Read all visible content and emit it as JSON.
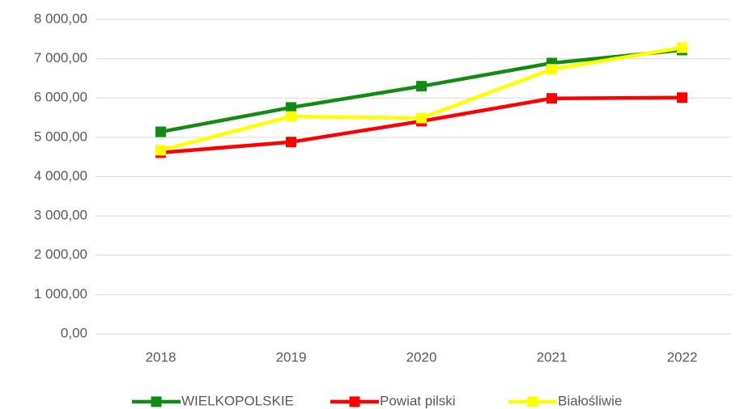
{
  "chart_data": {
    "type": "line",
    "categories": [
      "2018",
      "2019",
      "2020",
      "2021",
      "2022"
    ],
    "series": [
      {
        "name": "WIELKOPOLSKIE",
        "color": "#138a13",
        "values": [
          5140,
          5760,
          6300,
          6890,
          7220
        ]
      },
      {
        "name": "Powiat pilski",
        "color": "#ff0000",
        "values": [
          4610,
          4880,
          5410,
          5990,
          6010
        ]
      },
      {
        "name": "Białośliwie",
        "color": "#ffff00",
        "values": [
          4670,
          5530,
          5490,
          6730,
          7280
        ]
      }
    ],
    "ylim": [
      0,
      8000
    ],
    "yticks": [
      {
        "value": 0,
        "label": "0,00"
      },
      {
        "value": 1000,
        "label": "1 000,00"
      },
      {
        "value": 2000,
        "label": "2 000,00"
      },
      {
        "value": 3000,
        "label": "3 000,00"
      },
      {
        "value": 4000,
        "label": "4 000,00"
      },
      {
        "value": 5000,
        "label": "5 000,00"
      },
      {
        "value": 6000,
        "label": "6 000,00"
      },
      {
        "value": 7000,
        "label": "7 000,00"
      },
      {
        "value": 8000,
        "label": "8 000,00"
      }
    ],
    "grid": true,
    "legend": "bottom"
  }
}
